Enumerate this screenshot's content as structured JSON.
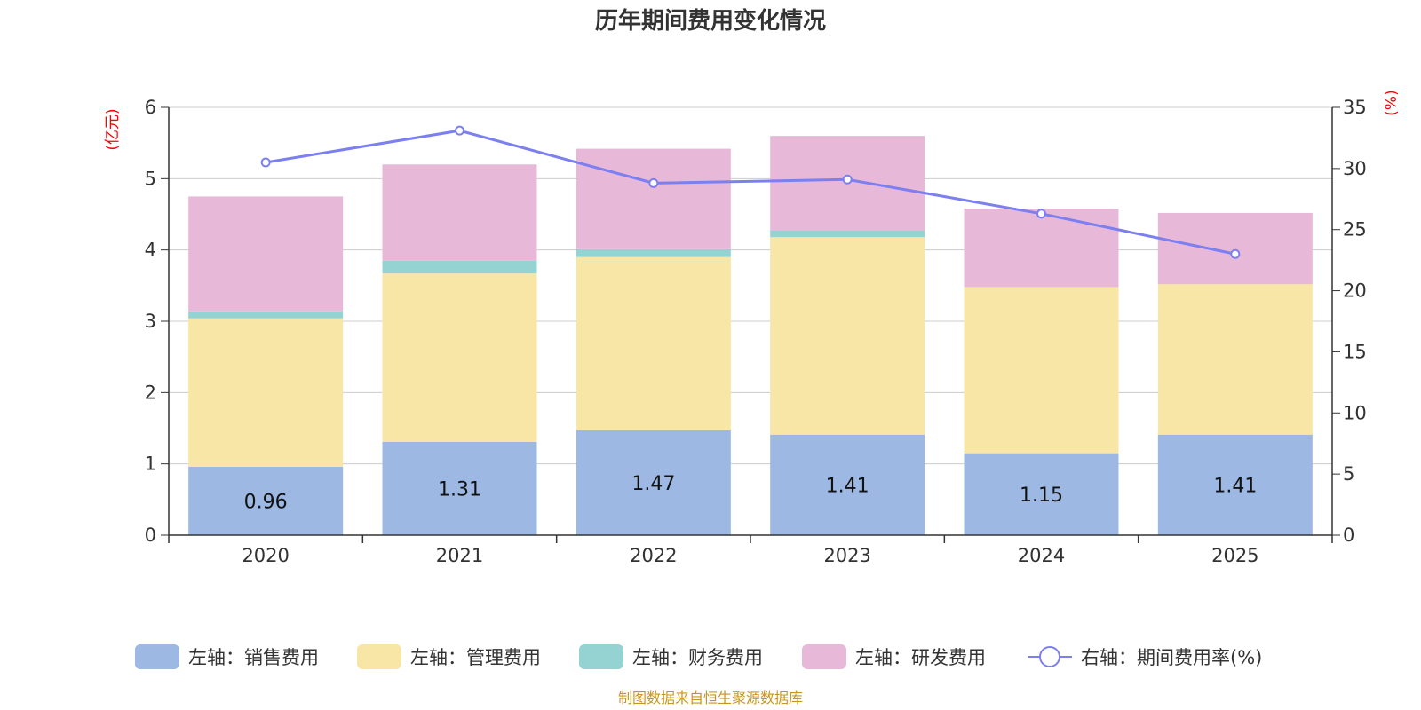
{
  "chart_data": {
    "type": "bar",
    "stacked": true,
    "title": "历年期间费用变化情况",
    "categories": [
      "2020",
      "2021",
      "2022",
      "2023",
      "2024",
      "2025"
    ],
    "left_axis": {
      "unit_label": "(亿元)",
      "ylim": [
        0,
        6
      ],
      "ticks": [
        "0",
        "1",
        "2",
        "3",
        "4",
        "5",
        "6"
      ]
    },
    "right_axis": {
      "unit_label": "(%)",
      "ylim": [
        0,
        35
      ],
      "ticks": [
        "0",
        "5",
        "10",
        "15",
        "20",
        "25",
        "30",
        "35"
      ]
    },
    "series": [
      {
        "name": "左轴：销售费用",
        "type": "bar",
        "axis": "left",
        "color": "#9db8e2",
        "values": [
          0.96,
          1.31,
          1.47,
          1.41,
          1.15,
          1.41
        ],
        "labels": [
          "0.96",
          "1.31",
          "1.47",
          "1.41",
          "1.15",
          "1.41"
        ]
      },
      {
        "name": "左轴：管理费用",
        "type": "bar",
        "axis": "left",
        "color": "#f7e6a6",
        "values": [
          2.08,
          2.36,
          2.43,
          2.77,
          2.33,
          2.11
        ]
      },
      {
        "name": "左轴：财务费用",
        "type": "bar",
        "axis": "left",
        "color": "#95d3d3",
        "values": [
          0.1,
          0.18,
          0.11,
          0.09,
          0.0,
          0.0
        ]
      },
      {
        "name": "左轴：研发费用",
        "type": "bar",
        "axis": "left",
        "color": "#e8b8d9",
        "values": [
          1.61,
          1.35,
          1.41,
          1.33,
          1.1,
          1.0
        ]
      },
      {
        "name": "右轴：期间费用率(%)",
        "type": "line",
        "axis": "right",
        "color": "#7b7ff0",
        "values": [
          30.5,
          33.1,
          28.8,
          29.1,
          26.3,
          23.0
        ]
      }
    ],
    "grid": true,
    "legend_position": "bottom"
  },
  "source": "制图数据来自恒生聚源数据库"
}
